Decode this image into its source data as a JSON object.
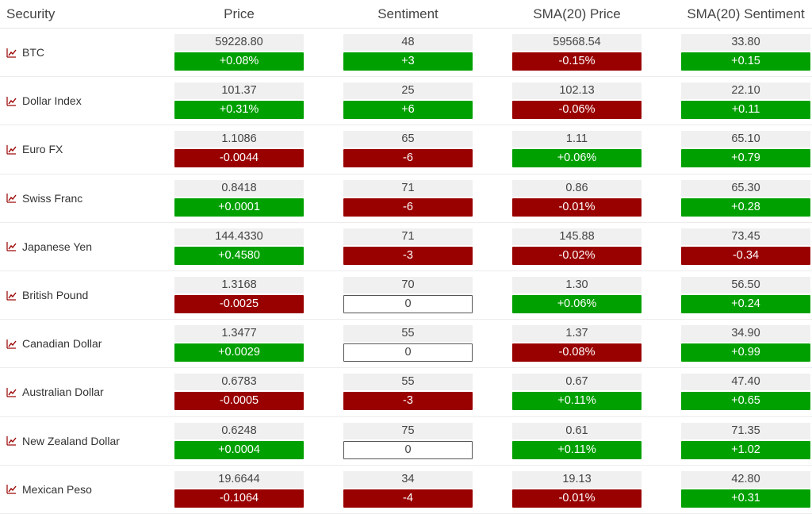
{
  "headers": {
    "security": "Security",
    "price": "Price",
    "sentiment": "Sentiment",
    "sma_price": "SMA(20) Price",
    "sma_sentiment": "SMA(20) Sentiment"
  },
  "colors": {
    "positive": "#00a000",
    "negative": "#990000",
    "value_bg": "#f0f0f0"
  },
  "icon": "chart-trend-icon",
  "rows": [
    {
      "name": "BTC",
      "price": "59228.80",
      "price_chg": "+0.08%",
      "sent": "48",
      "sent_chg": "+3",
      "sma_price": "59568.54",
      "sma_price_chg": "-0.15%",
      "sma_sent": "33.80",
      "sma_sent_chg": "+0.15"
    },
    {
      "name": "Dollar Index",
      "price": "101.37",
      "price_chg": "+0.31%",
      "sent": "25",
      "sent_chg": "+6",
      "sma_price": "102.13",
      "sma_price_chg": "-0.06%",
      "sma_sent": "22.10",
      "sma_sent_chg": "+0.11"
    },
    {
      "name": "Euro FX",
      "price": "1.1086",
      "price_chg": "-0.0044",
      "sent": "65",
      "sent_chg": "-6",
      "sma_price": "1.11",
      "sma_price_chg": "+0.06%",
      "sma_sent": "65.10",
      "sma_sent_chg": "+0.79"
    },
    {
      "name": "Swiss Franc",
      "price": "0.8418",
      "price_chg": "+0.0001",
      "sent": "71",
      "sent_chg": "-6",
      "sma_price": "0.86",
      "sma_price_chg": "-0.01%",
      "sma_sent": "65.30",
      "sma_sent_chg": "+0.28"
    },
    {
      "name": "Japanese Yen",
      "price": "144.4330",
      "price_chg": "+0.4580",
      "sent": "71",
      "sent_chg": "-3",
      "sma_price": "145.88",
      "sma_price_chg": "-0.02%",
      "sma_sent": "73.45",
      "sma_sent_chg": "-0.34"
    },
    {
      "name": "British Pound",
      "price": "1.3168",
      "price_chg": "-0.0025",
      "sent": "70",
      "sent_chg": "0",
      "sma_price": "1.30",
      "sma_price_chg": "+0.06%",
      "sma_sent": "56.50",
      "sma_sent_chg": "+0.24"
    },
    {
      "name": "Canadian Dollar",
      "price": "1.3477",
      "price_chg": "+0.0029",
      "sent": "55",
      "sent_chg": "0",
      "sma_price": "1.37",
      "sma_price_chg": "-0.08%",
      "sma_sent": "34.90",
      "sma_sent_chg": "+0.99"
    },
    {
      "name": "Australian Dollar",
      "price": "0.6783",
      "price_chg": "-0.0005",
      "sent": "55",
      "sent_chg": "-3",
      "sma_price": "0.67",
      "sma_price_chg": "+0.11%",
      "sma_sent": "47.40",
      "sma_sent_chg": "+0.65"
    },
    {
      "name": "New Zealand Dollar",
      "price": "0.6248",
      "price_chg": "+0.0004",
      "sent": "75",
      "sent_chg": "0",
      "sma_price": "0.61",
      "sma_price_chg": "+0.11%",
      "sma_sent": "71.35",
      "sma_sent_chg": "+1.02"
    },
    {
      "name": "Mexican Peso",
      "price": "19.6644",
      "price_chg": "-0.1064",
      "sent": "34",
      "sent_chg": "-4",
      "sma_price": "19.13",
      "sma_price_chg": "-0.01%",
      "sma_sent": "42.80",
      "sma_sent_chg": "+0.31"
    }
  ]
}
